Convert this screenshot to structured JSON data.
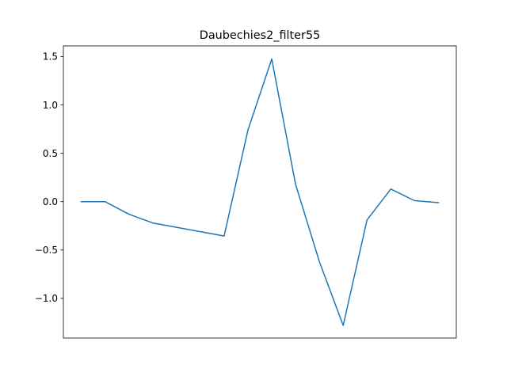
{
  "chart_data": {
    "type": "line",
    "title": "Daubechies2_filter55",
    "xlabel": "",
    "ylabel": "",
    "x_ticks_visible": false,
    "grid": false,
    "ylim": [
      -1.41,
      1.61
    ],
    "yticks": [
      {
        "value": 1.5,
        "label": "1.5"
      },
      {
        "value": 1.0,
        "label": "1.0"
      },
      {
        "value": 0.5,
        "label": "0.5"
      },
      {
        "value": 0.0,
        "label": "0.0"
      },
      {
        "value": -0.5,
        "label": "−0.5"
      },
      {
        "value": -1.0,
        "label": "−1.0"
      }
    ],
    "x": [
      0,
      1,
      2,
      3,
      4,
      5,
      6,
      7,
      8,
      9,
      10,
      11,
      12,
      13,
      14,
      15
    ],
    "series": [
      {
        "values": [
          0.0,
          0.0,
          -0.13,
          -0.22,
          -0.265,
          -0.31,
          -0.355,
          0.74,
          1.475,
          0.18,
          -0.62,
          -1.28,
          -0.19,
          0.13,
          0.01,
          -0.01
        ],
        "color": "#1f77b4"
      }
    ]
  }
}
